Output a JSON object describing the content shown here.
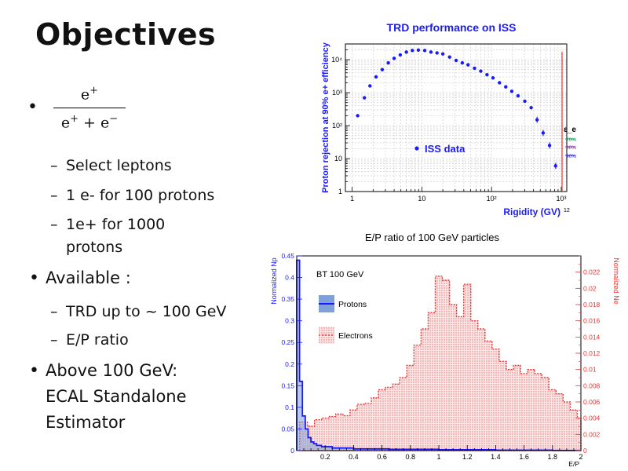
{
  "slide": {
    "title": "Objectives",
    "fraction": {
      "numerator": "e+",
      "denominator": "e+ + e−"
    },
    "sub1": [
      "Select leptons",
      "1 e- for 100 protons",
      "1e+ for 1000",
      "protons"
    ],
    "bullet2": "Available :",
    "sub2": [
      "TRD up to ~ 100 GeV",
      "E/P ratio"
    ],
    "bullet3": [
      "Above 100 GeV:",
      "ECAL Standalone",
      "Estimator"
    ]
  },
  "chart_data": [
    {
      "type": "scatter",
      "title": "TRD performance on ISS",
      "xlabel": "Rigidity (GV)",
      "ylabel": "Proton rejection at 90% e+ efficiency",
      "xscale": "log",
      "yscale": "log",
      "xlim": [
        0.8,
        1200
      ],
      "ylim": [
        1,
        30000
      ],
      "x_ticks": [
        "1",
        "10",
        "10²",
        "10³"
      ],
      "y_ticks": [
        "1",
        "10",
        "10²",
        "10³",
        "10⁴"
      ],
      "series": [
        {
          "name": "ISS data",
          "x": [
            1.2,
            1.5,
            1.8,
            2.2,
            2.7,
            3.3,
            4.0,
            4.9,
            6.0,
            7.3,
            8.9,
            11,
            13.5,
            16.5,
            20,
            25,
            31,
            38,
            46,
            57,
            70,
            86,
            105,
            130,
            160,
            195,
            240,
            300,
            370,
            450,
            550,
            680,
            830
          ],
          "y": [
            200,
            700,
            1600,
            3000,
            5000,
            8000,
            11000,
            14000,
            17000,
            19000,
            19500,
            19000,
            17000,
            16000,
            15000,
            12000,
            9500,
            8000,
            7000,
            5500,
            4500,
            3500,
            2800,
            2000,
            1500,
            1100,
            800,
            550,
            350,
            150,
            60,
            25,
            6
          ]
        }
      ],
      "annotations": [
        "ε_e",
        "70%",
        "80%",
        "90%",
        "ISS data"
      ],
      "corner_label": "12"
    },
    {
      "type": "histogram",
      "title": "E/P ratio of 100 GeV particles",
      "xlabel": "E/P",
      "ylabel": "Normalized Np",
      "ylabel_right": "Normalized Ne",
      "xlim": [
        0,
        2
      ],
      "ylim": [
        0,
        0.45
      ],
      "ylim_right": [
        0,
        0.024
      ],
      "x_ticks": [
        "0.2",
        "0.4",
        "0.6",
        "0.8",
        "1",
        "1.2",
        "1.4",
        "1.6",
        "1.8",
        "2"
      ],
      "y_ticks": [
        "0",
        "0.05",
        "0.1",
        "0.15",
        "0.2",
        "0.25",
        "0.3",
        "0.35",
        "0.4",
        "0.45"
      ],
      "y_ticks_right": [
        "0",
        "0.002",
        "0.004",
        "0.006",
        "0.008",
        "0.01",
        "0.012",
        "0.014",
        "0.016",
        "0.018",
        "0.02",
        "0.022"
      ],
      "legend": {
        "header": "BT 100 GeV",
        "entries": [
          "Protons",
          "Electrons"
        ]
      },
      "series": [
        {
          "name": "Protons",
          "axis": "left",
          "x": [
            0.01,
            0.03,
            0.05,
            0.07,
            0.09,
            0.11,
            0.13,
            0.15,
            0.2,
            0.3,
            0.5,
            0.8,
            1.2,
            1.6,
            2.0
          ],
          "y": [
            0.44,
            0.16,
            0.08,
            0.05,
            0.03,
            0.02,
            0.016,
            0.012,
            0.009,
            0.006,
            0.004,
            0.003,
            0.002,
            0.001,
            0.0005
          ]
        },
        {
          "name": "Electrons",
          "axis": "right",
          "x": [
            0.05,
            0.1,
            0.15,
            0.2,
            0.25,
            0.3,
            0.35,
            0.4,
            0.45,
            0.5,
            0.55,
            0.6,
            0.65,
            0.7,
            0.75,
            0.8,
            0.85,
            0.9,
            0.95,
            1.0,
            1.05,
            1.1,
            1.15,
            1.2,
            1.25,
            1.3,
            1.35,
            1.4,
            1.45,
            1.5,
            1.55,
            1.6,
            1.65,
            1.7,
            1.75,
            1.8,
            1.85,
            1.9,
            1.95,
            2.0
          ],
          "y": [
            0.0035,
            0.003,
            0.0038,
            0.004,
            0.0042,
            0.0045,
            0.0043,
            0.005,
            0.0057,
            0.0058,
            0.0065,
            0.0075,
            0.0078,
            0.0082,
            0.009,
            0.0105,
            0.013,
            0.015,
            0.017,
            0.0215,
            0.021,
            0.018,
            0.0165,
            0.0205,
            0.016,
            0.015,
            0.0135,
            0.0125,
            0.011,
            0.01,
            0.0105,
            0.0095,
            0.01,
            0.0095,
            0.009,
            0.0075,
            0.007,
            0.006,
            0.005,
            0.004
          ]
        }
      ]
    }
  ]
}
